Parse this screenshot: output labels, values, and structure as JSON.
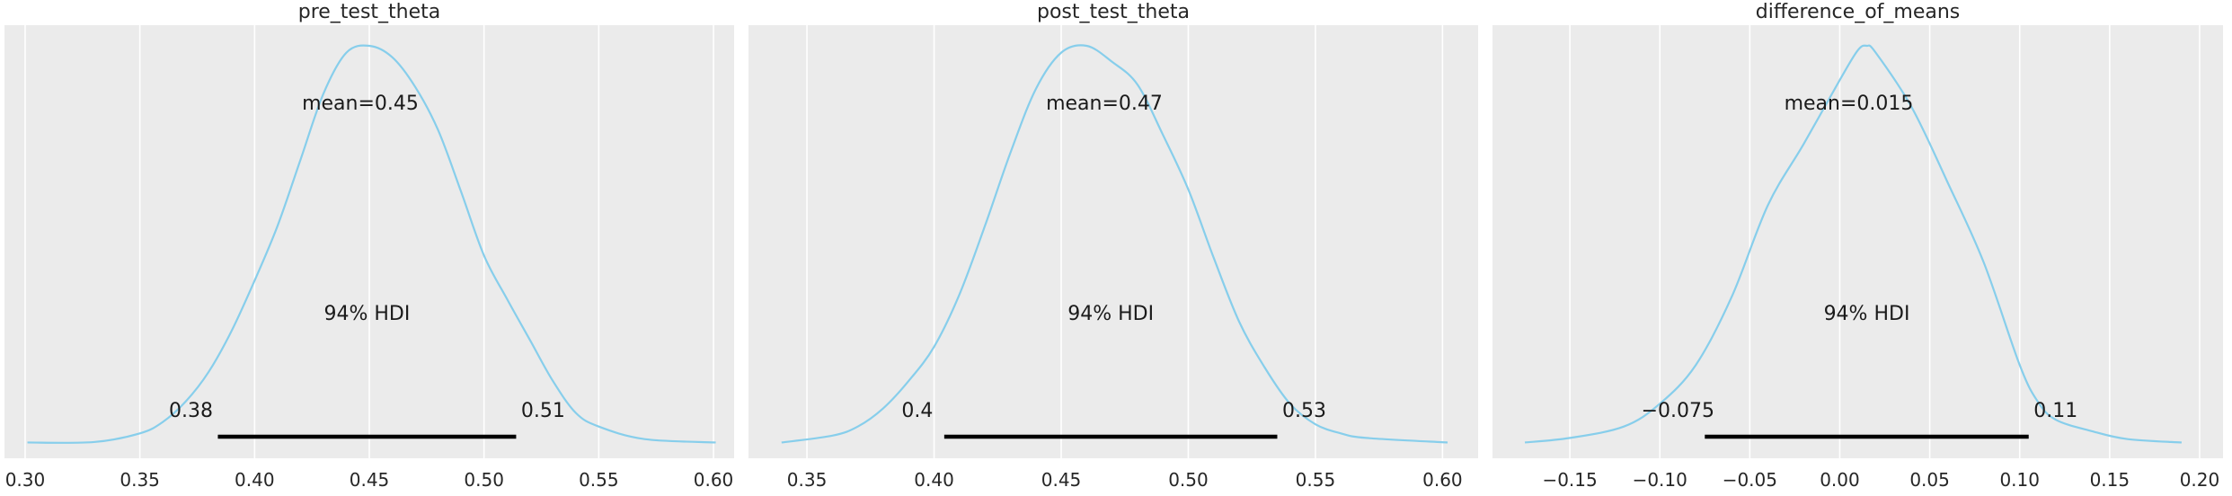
{
  "chart_data": [
    {
      "type": "area",
      "title": "pre_test_theta",
      "xlabel": "",
      "ylabel": "",
      "xlim": [
        0.291,
        0.609
      ],
      "xticks": [
        0.3,
        0.35,
        0.4,
        0.45,
        0.5,
        0.55,
        0.6
      ],
      "xtick_labels": [
        "0.30",
        "0.35",
        "0.40",
        "0.45",
        "0.50",
        "0.55",
        "0.60"
      ],
      "grid": true,
      "line_color": "#87ceeb",
      "hdi_color": "#000000",
      "mean_label": "mean=0.45",
      "hdi_label": "94% HDI",
      "hdi": [
        0.384,
        0.514
      ],
      "hdi_low_label": "0.38",
      "hdi_high_label": "0.51",
      "density": {
        "x": [
          0.301,
          0.33,
          0.35,
          0.36,
          0.37,
          0.38,
          0.39,
          0.4,
          0.41,
          0.42,
          0.43,
          0.44,
          0.45,
          0.46,
          0.47,
          0.48,
          0.49,
          0.5,
          0.51,
          0.52,
          0.53,
          0.54,
          0.55,
          0.57,
          0.601
        ],
        "y": [
          0.1,
          0.12,
          0.5,
          1.0,
          1.9,
          3.2,
          5.0,
          7.2,
          9.6,
          12.5,
          15.4,
          17.2,
          17.5,
          17.0,
          15.7,
          13.8,
          11.1,
          8.3,
          6.4,
          4.6,
          2.8,
          1.4,
          0.8,
          0.25,
          0.1
        ]
      }
    },
    {
      "type": "area",
      "title": "post_test_theta",
      "xlabel": "",
      "ylabel": "",
      "xlim": [
        0.327,
        0.614
      ],
      "xticks": [
        0.35,
        0.4,
        0.45,
        0.5,
        0.55,
        0.6
      ],
      "xtick_labels": [
        "0.35",
        "0.40",
        "0.45",
        "0.50",
        "0.55",
        "0.60"
      ],
      "grid": true,
      "line_color": "#87ceeb",
      "hdi_color": "#000000",
      "mean_label": "mean=0.47",
      "hdi_label": "94% HDI",
      "hdi": [
        0.404,
        0.535
      ],
      "hdi_low_label": "0.4",
      "hdi_high_label": "0.53",
      "density": {
        "x": [
          0.34,
          0.36,
          0.37,
          0.38,
          0.39,
          0.4,
          0.41,
          0.42,
          0.43,
          0.44,
          0.45,
          0.46,
          0.47,
          0.48,
          0.49,
          0.5,
          0.51,
          0.52,
          0.53,
          0.54,
          0.55,
          0.56,
          0.57,
          0.602
        ],
        "y": [
          0.1,
          0.4,
          0.8,
          1.6,
          2.8,
          4.3,
          6.6,
          9.6,
          12.8,
          15.6,
          17.2,
          17.5,
          16.8,
          15.8,
          13.6,
          11.2,
          8.2,
          5.4,
          3.4,
          1.8,
          0.9,
          0.5,
          0.3,
          0.1
        ]
      }
    },
    {
      "type": "area",
      "title": "difference_of_means",
      "xlabel": "",
      "ylabel": "",
      "xlim": [
        -0.193,
        0.213
      ],
      "xticks": [
        -0.15,
        -0.1,
        -0.05,
        0.0,
        0.05,
        0.1,
        0.15,
        0.2
      ],
      "xtick_labels": [
        "−0.15",
        "−0.10",
        "−0.05",
        "0.00",
        "0.05",
        "0.10",
        "0.15",
        "0.20"
      ],
      "grid": true,
      "line_color": "#87ceeb",
      "hdi_color": "#000000",
      "mean_label": "mean=0.015",
      "hdi_label": "94% HDI",
      "hdi": [
        -0.075,
        0.105
      ],
      "hdi_low_label": "−0.075",
      "hdi_high_label": "0.11",
      "density": {
        "x": [
          -0.175,
          -0.15,
          -0.12,
          -0.1,
          -0.08,
          -0.06,
          -0.04,
          -0.02,
          0.0,
          0.01,
          0.015,
          0.02,
          0.04,
          0.06,
          0.08,
          0.1,
          0.11,
          0.12,
          0.14,
          0.16,
          0.19
        ],
        "y": [
          0.1,
          0.3,
          0.8,
          1.8,
          3.5,
          6.5,
          10.5,
          13.2,
          16.0,
          17.3,
          17.5,
          17.2,
          14.8,
          11.5,
          8.0,
          3.5,
          1.9,
          1.1,
          0.6,
          0.25,
          0.1
        ]
      }
    }
  ]
}
